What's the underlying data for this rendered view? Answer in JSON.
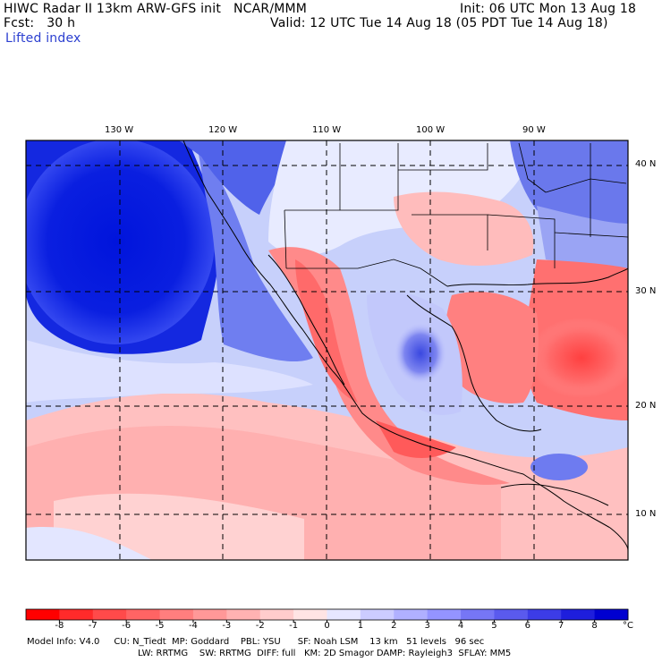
{
  "header": {
    "title": "HIWC Radar II 13km ARW-GFS init   NCAR/MMM",
    "init": "Init: 06 UTC Mon 13 Aug 18",
    "fcst": "Fcst:   30 h",
    "valid": "Valid: 12 UTC Tue 14 Aug 18 (05 PDT Tue 14 Aug 18)",
    "field": "Lifted index"
  },
  "map": {
    "longitude_labels": [
      "130 W",
      "120 W",
      "110 W",
      "100 W",
      "90 W"
    ],
    "latitude_labels": [
      "40 N",
      "30 N",
      "20 N",
      "10 N"
    ],
    "grid_style": "dashed"
  },
  "colorbar": {
    "ticks": [
      "-8",
      "-7",
      "-6",
      "-5",
      "-4",
      "-3",
      "-2",
      "-1",
      "0",
      "1",
      "2",
      "3",
      "4",
      "5",
      "6",
      "7",
      "8"
    ],
    "unit": "°C",
    "colors": [
      "#ff0000",
      "#ff2a2a",
      "#ff4a4a",
      "#ff6464",
      "#ff7e7e",
      "#ff9898",
      "#ffb2b2",
      "#ffcccc",
      "#ffe4e4",
      "#e6e6ff",
      "#ccccff",
      "#b0b0ff",
      "#9494ff",
      "#7676f6",
      "#5a5aee",
      "#3c3ce6",
      "#1e1edc",
      "#0000d0"
    ]
  },
  "model_info": {
    "line1": "Model Info: V4.0     CU: N_Tiedt  MP: Goddard    PBL: YSU      SF: Noah LSM    13 km   51 levels   96 sec",
    "line2": "LW: RRTMG    SW: RRTMG  DIFF: full   KM: 2D Smagor DAMP: Rayleigh3  SFLAY: MM5"
  }
}
